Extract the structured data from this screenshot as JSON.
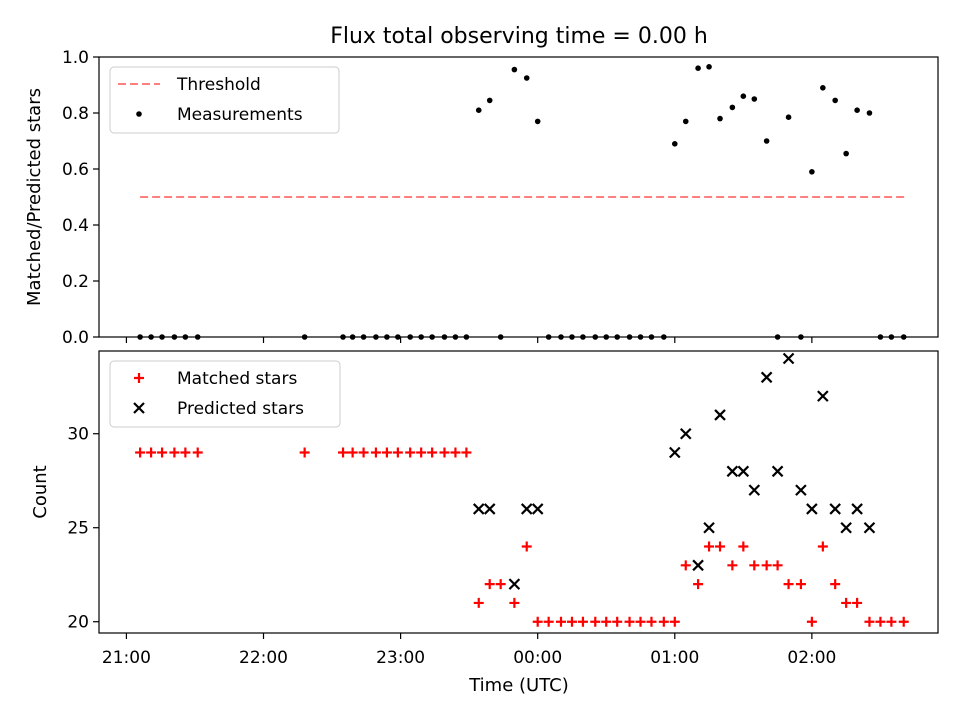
{
  "chart_data": [
    {
      "type": "scatter",
      "title": "Flux total observing time = 0.00 h",
      "ylabel": "Matched/Predicted stars",
      "xlabel": "",
      "x_unit": "hours since 21:00 UTC",
      "xlim": [
        -0.2,
        5.92
      ],
      "ylim": [
        0,
        1.0
      ],
      "yticks": [
        0.0,
        0.2,
        0.4,
        0.6,
        0.8,
        1.0
      ],
      "ytick_labels": [
        "0.0",
        "0.2",
        "0.4",
        "0.6",
        "0.8",
        "1.0"
      ],
      "legend_position": "top-left",
      "series": [
        {
          "name": "Threshold",
          "style": "dashed-line",
          "color": "#ff7f7f",
          "x": [
            0.1,
            5.68
          ],
          "y": [
            0.5,
            0.5
          ]
        },
        {
          "name": "Measurements",
          "style": "dot",
          "color": "#000000",
          "x": [
            0.1,
            0.18,
            0.26,
            0.35,
            0.43,
            0.52,
            1.3,
            1.58,
            1.65,
            1.73,
            1.82,
            1.9,
            1.98,
            2.07,
            2.15,
            2.23,
            2.32,
            2.4,
            2.48,
            2.57,
            2.65,
            2.73,
            2.83,
            2.92,
            3.0,
            3.08,
            3.17,
            3.25,
            3.33,
            3.42,
            3.5,
            3.58,
            3.67,
            3.75,
            3.83,
            3.92,
            4.0,
            4.08,
            4.17,
            4.25,
            4.33,
            4.42,
            4.5,
            4.58,
            4.67,
            4.75,
            4.83,
            4.92,
            5.0,
            5.08,
            5.17,
            5.25,
            5.33,
            5.42,
            5.5,
            5.58,
            5.67
          ],
          "y": [
            0,
            0,
            0,
            0,
            0,
            0,
            0,
            0,
            0,
            0,
            0,
            0,
            0,
            0,
            0,
            0,
            0,
            0,
            0,
            0.81,
            0.845,
            0,
            0.955,
            0.925,
            0.77,
            0,
            0,
            0,
            0,
            0,
            0,
            0,
            0,
            0,
            0,
            0,
            0.69,
            0.77,
            0.96,
            0.965,
            0.78,
            0.82,
            0.86,
            0.85,
            0.7,
            0,
            0.785,
            0,
            0.59,
            0.89,
            0.845,
            0.655,
            0.81,
            0.8,
            0,
            0,
            0
          ]
        }
      ]
    },
    {
      "type": "scatter",
      "title": "",
      "ylabel": "Count",
      "xlabel": "Time (UTC)",
      "x_unit": "hours since 21:00 UTC",
      "xlim": [
        -0.2,
        5.92
      ],
      "ylim": [
        19.4,
        34.4
      ],
      "yticks": [
        20,
        25,
        30
      ],
      "ytick_labels": [
        "20",
        "25",
        "30"
      ],
      "xticks": [
        0,
        1,
        2,
        3,
        4,
        5
      ],
      "xtick_labels": [
        "21:00",
        "22:00",
        "23:00",
        "00:00",
        "01:00",
        "02:00"
      ],
      "legend_position": "top-left",
      "series": [
        {
          "name": "Matched stars",
          "style": "plus",
          "color": "#ff0000",
          "x": [
            0.1,
            0.18,
            0.26,
            0.35,
            0.43,
            0.52,
            1.3,
            1.58,
            1.65,
            1.73,
            1.82,
            1.9,
            1.98,
            2.07,
            2.15,
            2.23,
            2.32,
            2.4,
            2.48,
            2.57,
            2.65,
            2.73,
            2.83,
            2.92,
            3.0,
            3.08,
            3.17,
            3.25,
            3.33,
            3.42,
            3.5,
            3.58,
            3.67,
            3.75,
            3.83,
            3.92,
            4.0,
            4.08,
            4.17,
            4.25,
            4.33,
            4.42,
            4.5,
            4.58,
            4.67,
            4.75,
            4.83,
            4.92,
            5.0,
            5.08,
            5.17,
            5.25,
            5.33,
            5.42,
            5.5,
            5.58,
            5.67
          ],
          "y": [
            29,
            29,
            29,
            29,
            29,
            29,
            29,
            29,
            29,
            29,
            29,
            29,
            29,
            29,
            29,
            29,
            29,
            29,
            29,
            21,
            22,
            22,
            21,
            24,
            20,
            20,
            20,
            20,
            20,
            20,
            20,
            20,
            20,
            20,
            20,
            20,
            20,
            23,
            22,
            24,
            24,
            23,
            24,
            23,
            23,
            23,
            22,
            22,
            20,
            24,
            22,
            21,
            21,
            20,
            20,
            20,
            20
          ]
        },
        {
          "name": "Predicted stars",
          "style": "x",
          "color": "#000000",
          "x": [
            2.57,
            2.65,
            2.83,
            2.92,
            3.0,
            4.0,
            4.08,
            4.17,
            4.25,
            4.33,
            4.42,
            4.5,
            4.58,
            4.67,
            4.75,
            4.83,
            4.92,
            5.0,
            5.08,
            5.17,
            5.25,
            5.33,
            5.42
          ],
          "y": [
            26,
            26,
            22,
            26,
            26,
            29,
            30,
            23,
            25,
            31,
            28,
            28,
            27,
            33,
            28,
            34,
            27,
            26,
            32,
            26,
            25,
            26,
            25
          ]
        }
      ]
    }
  ]
}
